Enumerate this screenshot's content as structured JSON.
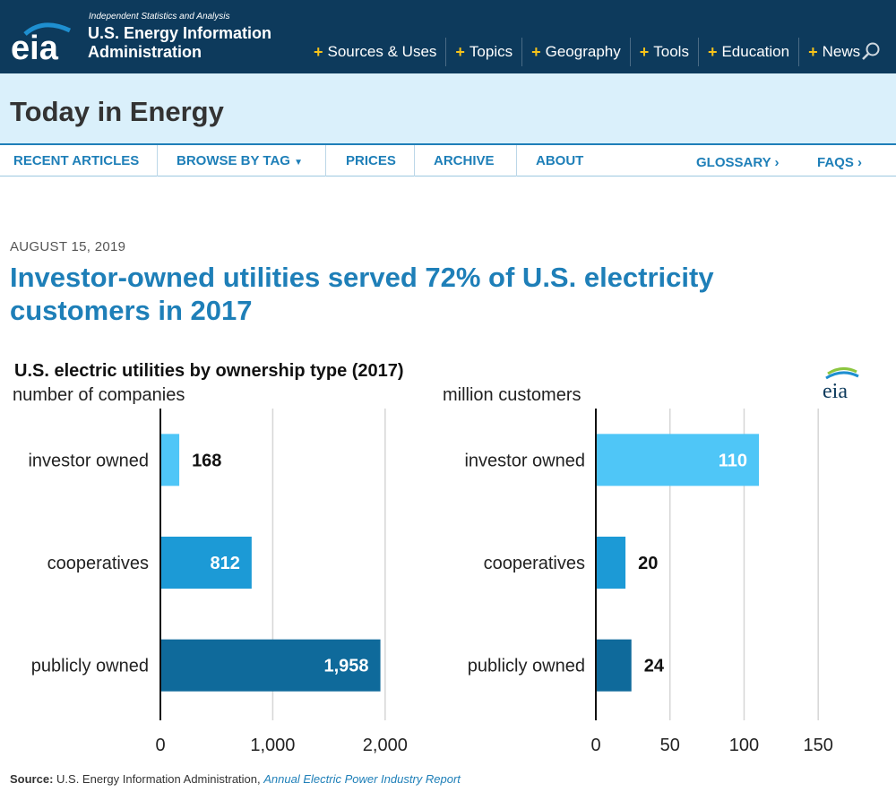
{
  "header": {
    "logo_text": "eia",
    "tagline": "Independent Statistics and Analysis",
    "org_name": "U.S. Energy Information Administration",
    "nav": [
      {
        "label": "Sources & Uses"
      },
      {
        "label": "Topics"
      },
      {
        "label": "Geography"
      },
      {
        "label": "Tools"
      },
      {
        "label": "Education"
      },
      {
        "label": "News"
      }
    ]
  },
  "section": {
    "title": "Today in Energy"
  },
  "subnav": {
    "recent": "RECENT ARTICLES",
    "browse": "BROWSE BY TAG",
    "prices": "PRICES",
    "archive": "ARCHIVE",
    "about": "ABOUT",
    "glossary": "GLOSSARY",
    "faqs": "FAQS"
  },
  "article": {
    "date": "AUGUST 15, 2019",
    "headline": "Investor-owned utilities served 72% of U.S. electricity customers in 2017"
  },
  "chart_data": {
    "type": "bar",
    "title": "U.S. electric utilities by ownership type (2017)",
    "logo_text": "eia",
    "categories": [
      "investor owned",
      "cooperatives",
      "publicly owned"
    ],
    "panels": [
      {
        "subtitle": "number of companies",
        "values": [
          168,
          812,
          1958
        ],
        "value_labels": [
          "168",
          "812",
          "1,958"
        ],
        "xlim": [
          0,
          2400
        ],
        "ticks": [
          0,
          1000,
          2000
        ],
        "tick_labels": [
          "0",
          "1,000",
          "2,000"
        ]
      },
      {
        "subtitle": "million customers",
        "values": [
          110,
          20,
          24
        ],
        "value_labels": [
          "110",
          "20",
          "24"
        ],
        "xlim": [
          0,
          165
        ],
        "ticks": [
          0,
          50,
          100,
          150
        ],
        "tick_labels": [
          "0",
          "50",
          "100",
          "150"
        ]
      }
    ],
    "colors": [
      "#4fc6f7",
      "#1c9ad6",
      "#0f6a9b"
    ],
    "grid": true,
    "source_label": "Source:",
    "source_text": "U.S. Energy Information Administration,",
    "source_link": "Annual Electric Power Industry Report"
  }
}
